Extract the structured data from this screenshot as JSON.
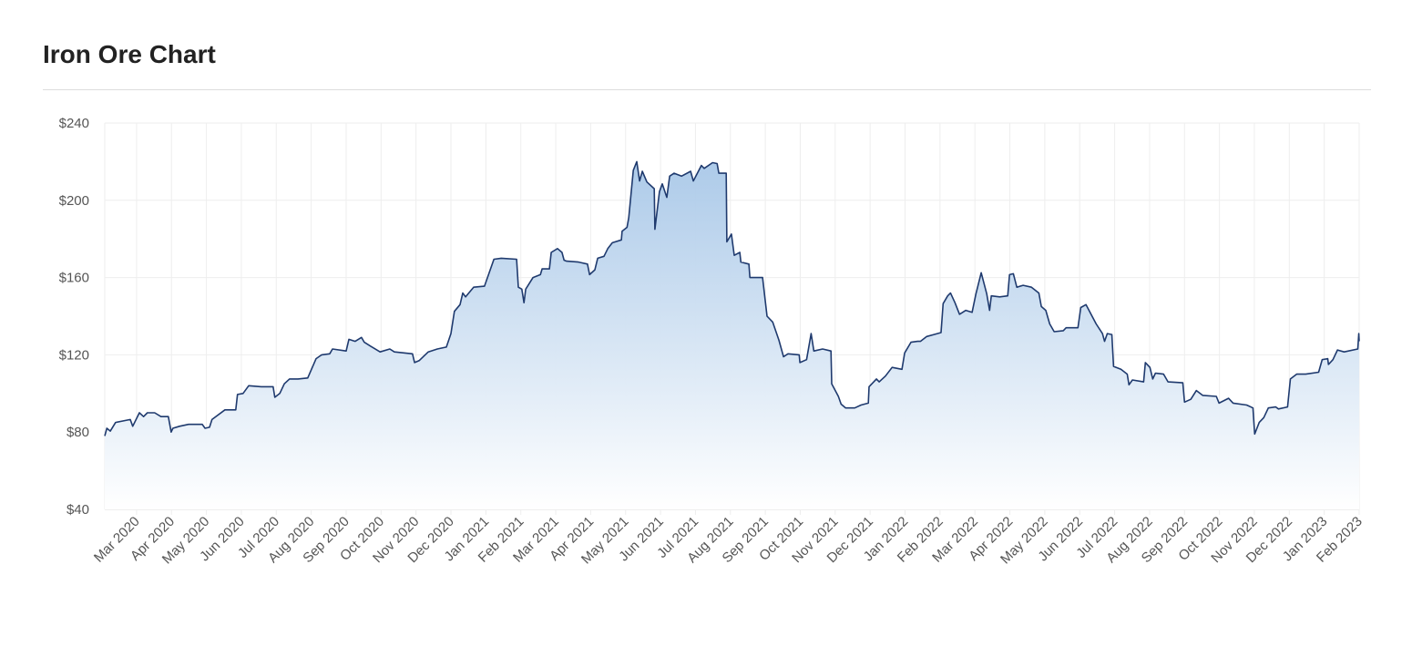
{
  "chart_data": {
    "type": "area",
    "title": "Iron Ore Chart",
    "xlabel": "",
    "ylabel": "",
    "x_units": "months since Feb 1 2020",
    "xlim": [
      0.09,
      36.0
    ],
    "ylim": [
      40,
      240
    ],
    "y_ticks": [
      40,
      80,
      120,
      160,
      200,
      240
    ],
    "y_tick_labels": [
      "$40",
      "$80",
      "$120",
      "$160",
      "$200",
      "$240"
    ],
    "x_ticks": [
      1,
      2,
      3,
      4,
      5,
      6,
      7,
      8,
      9,
      10,
      11,
      12,
      13,
      14,
      15,
      16,
      17,
      18,
      19,
      20,
      21,
      22,
      23,
      24,
      25,
      26,
      27,
      28,
      29,
      30,
      31,
      32,
      33,
      34,
      35,
      36
    ],
    "x_tick_labels": [
      "Mar 2020",
      "Apr 2020",
      "May 2020",
      "Jun 2020",
      "Jul 2020",
      "Aug 2020",
      "Sep 2020",
      "Oct 2020",
      "Nov 2020",
      "Dec 2020",
      "Jan 2021",
      "Feb 2021",
      "Mar 2021",
      "Apr 2021",
      "May 2021",
      "Jun 2021",
      "Jul 2021",
      "Aug 2021",
      "Sep 2021",
      "Oct 2021",
      "Nov 2021",
      "Dec 2021",
      "Jan 2022",
      "Feb 2022",
      "Mar 2022",
      "Apr 2022",
      "May 2022",
      "Jun 2022",
      "Jul 2022",
      "Aug 2022",
      "Sep 2022",
      "Oct 2022",
      "Nov 2022",
      "Dec 2022",
      "Jan 2023",
      "Feb 2023"
    ],
    "grid": true,
    "legend": "none",
    "colors": {
      "line": "#1f3a6e",
      "fill_top": "#a9c8e8",
      "fill_bottom": "#ffffff",
      "grid": "#eeeeee"
    },
    "series": [
      {
        "name": "Iron Ore",
        "points": [
          [
            0.09,
            78
          ],
          [
            0.15,
            82
          ],
          [
            0.25,
            80.5
          ],
          [
            0.4,
            85
          ],
          [
            0.82,
            86.5
          ],
          [
            0.89,
            83
          ],
          [
            1.08,
            90
          ],
          [
            1.2,
            88
          ],
          [
            1.31,
            90
          ],
          [
            1.52,
            90
          ],
          [
            1.7,
            88
          ],
          [
            1.91,
            88
          ],
          [
            1.99,
            80
          ],
          [
            2.04,
            82
          ],
          [
            2.23,
            83
          ],
          [
            2.49,
            84
          ],
          [
            2.88,
            84
          ],
          [
            2.96,
            82
          ],
          [
            3.09,
            82.5
          ],
          [
            3.16,
            86.5
          ],
          [
            3.53,
            91.5
          ],
          [
            3.84,
            91.5
          ],
          [
            3.89,
            99.5
          ],
          [
            4.05,
            100
          ],
          [
            4.21,
            104
          ],
          [
            4.57,
            103.5
          ],
          [
            4.91,
            103.5
          ],
          [
            4.96,
            98
          ],
          [
            5.1,
            100
          ],
          [
            5.23,
            105
          ],
          [
            5.38,
            107.5
          ],
          [
            5.62,
            107.5
          ],
          [
            5.9,
            108
          ],
          [
            6.14,
            118
          ],
          [
            6.3,
            120
          ],
          [
            6.53,
            120.5
          ],
          [
            6.61,
            123
          ],
          [
            7.0,
            122
          ],
          [
            7.08,
            128
          ],
          [
            7.26,
            127
          ],
          [
            7.44,
            129
          ],
          [
            7.52,
            126.5
          ],
          [
            7.7,
            124.5
          ],
          [
            7.97,
            121.5
          ],
          [
            8.25,
            123
          ],
          [
            8.38,
            121.5
          ],
          [
            8.9,
            120.5
          ],
          [
            8.96,
            116
          ],
          [
            9.09,
            117
          ],
          [
            9.35,
            121.5
          ],
          [
            9.61,
            123
          ],
          [
            9.87,
            124
          ],
          [
            10.0,
            131
          ],
          [
            10.1,
            142.5
          ],
          [
            10.26,
            146
          ],
          [
            10.34,
            152
          ],
          [
            10.42,
            150
          ],
          [
            10.65,
            155
          ],
          [
            10.96,
            155.5
          ],
          [
            11.23,
            169.5
          ],
          [
            11.44,
            170
          ],
          [
            11.88,
            169.5
          ],
          [
            11.93,
            155
          ],
          [
            12.03,
            154
          ],
          [
            12.09,
            147
          ],
          [
            12.14,
            154
          ],
          [
            12.35,
            160
          ],
          [
            12.56,
            161.5
          ],
          [
            12.61,
            164.5
          ],
          [
            12.82,
            164.5
          ],
          [
            12.87,
            173
          ],
          [
            13.05,
            175
          ],
          [
            13.18,
            173
          ],
          [
            13.24,
            169
          ],
          [
            13.31,
            168.5
          ],
          [
            13.65,
            168
          ],
          [
            13.91,
            167
          ],
          [
            13.97,
            161.5
          ],
          [
            14.12,
            164
          ],
          [
            14.2,
            170
          ],
          [
            14.38,
            171
          ],
          [
            14.49,
            175
          ],
          [
            14.62,
            178
          ],
          [
            14.88,
            179.5
          ],
          [
            14.9,
            184
          ],
          [
            15.04,
            186
          ],
          [
            15.09,
            191
          ],
          [
            15.22,
            215.5
          ],
          [
            15.32,
            220
          ],
          [
            15.4,
            210
          ],
          [
            15.48,
            215
          ],
          [
            15.61,
            209.5
          ],
          [
            15.82,
            206
          ],
          [
            15.84,
            185
          ],
          [
            15.97,
            204.5
          ],
          [
            16.05,
            208.5
          ],
          [
            16.18,
            201.5
          ],
          [
            16.26,
            212.5
          ],
          [
            16.39,
            214
          ],
          [
            16.6,
            212.5
          ],
          [
            16.86,
            215
          ],
          [
            16.94,
            210
          ],
          [
            17.17,
            218
          ],
          [
            17.25,
            216.5
          ],
          [
            17.49,
            219.5
          ],
          [
            17.62,
            219
          ],
          [
            17.67,
            214
          ],
          [
            17.88,
            214
          ],
          [
            17.9,
            178.5
          ],
          [
            18.03,
            182.5
          ],
          [
            18.11,
            171.5
          ],
          [
            18.27,
            173
          ],
          [
            18.3,
            168
          ],
          [
            18.53,
            167
          ],
          [
            18.56,
            160
          ],
          [
            18.92,
            160
          ],
          [
            19.05,
            140
          ],
          [
            19.21,
            137
          ],
          [
            19.39,
            127.5
          ],
          [
            19.52,
            119
          ],
          [
            19.65,
            120.5
          ],
          [
            19.97,
            120
          ],
          [
            19.99,
            116
          ],
          [
            20.18,
            117.5
          ],
          [
            20.31,
            131
          ],
          [
            20.39,
            122
          ],
          [
            20.64,
            123
          ],
          [
            20.88,
            122
          ],
          [
            20.9,
            105
          ],
          [
            21.09,
            98.5
          ],
          [
            21.17,
            94.5
          ],
          [
            21.3,
            92.5
          ],
          [
            21.56,
            92.5
          ],
          [
            21.74,
            94
          ],
          [
            21.95,
            95
          ],
          [
            21.97,
            103.5
          ],
          [
            22.18,
            107.5
          ],
          [
            22.26,
            106
          ],
          [
            22.44,
            109
          ],
          [
            22.63,
            113.5
          ],
          [
            22.91,
            112.5
          ],
          [
            22.99,
            121
          ],
          [
            23.17,
            126.5
          ],
          [
            23.36,
            127
          ],
          [
            23.44,
            127
          ],
          [
            23.62,
            129.5
          ],
          [
            23.83,
            130.5
          ],
          [
            24.03,
            131.5
          ],
          [
            24.09,
            146.5
          ],
          [
            24.22,
            150.5
          ],
          [
            24.3,
            152
          ],
          [
            24.43,
            147
          ],
          [
            24.56,
            141
          ],
          [
            24.74,
            143
          ],
          [
            24.92,
            142
          ],
          [
            25.03,
            151.5
          ],
          [
            25.18,
            162.5
          ],
          [
            25.34,
            151.5
          ],
          [
            25.42,
            143
          ],
          [
            25.47,
            150.5
          ],
          [
            25.71,
            150
          ],
          [
            25.94,
            150.5
          ],
          [
            25.99,
            161.5
          ],
          [
            26.1,
            162
          ],
          [
            26.2,
            155
          ],
          [
            26.38,
            156
          ],
          [
            26.62,
            155
          ],
          [
            26.83,
            152
          ],
          [
            26.9,
            145
          ],
          [
            27.03,
            143
          ],
          [
            27.14,
            136
          ],
          [
            27.27,
            132
          ],
          [
            27.53,
            132.5
          ],
          [
            27.61,
            134
          ],
          [
            27.95,
            134
          ],
          [
            28.03,
            144.5
          ],
          [
            28.18,
            146
          ],
          [
            28.31,
            141.5
          ],
          [
            28.47,
            136
          ],
          [
            28.65,
            131
          ],
          [
            28.71,
            127
          ],
          [
            28.79,
            131
          ],
          [
            28.92,
            130.5
          ],
          [
            28.97,
            114
          ],
          [
            29.18,
            112.5
          ],
          [
            29.36,
            110
          ],
          [
            29.41,
            104.5
          ],
          [
            29.51,
            107
          ],
          [
            29.83,
            106
          ],
          [
            29.88,
            116
          ],
          [
            30.01,
            113.5
          ],
          [
            30.09,
            107.5
          ],
          [
            30.17,
            110.5
          ],
          [
            30.4,
            110
          ],
          [
            30.53,
            106
          ],
          [
            30.95,
            105.5
          ],
          [
            31.0,
            95.5
          ],
          [
            31.18,
            97
          ],
          [
            31.34,
            101.5
          ],
          [
            31.52,
            99
          ],
          [
            31.91,
            98.5
          ],
          [
            31.99,
            95
          ],
          [
            32.26,
            97.5
          ],
          [
            32.39,
            95
          ],
          [
            32.78,
            94
          ],
          [
            32.96,
            92.5
          ],
          [
            33.01,
            79
          ],
          [
            33.14,
            85
          ],
          [
            33.27,
            87.5
          ],
          [
            33.4,
            92.5
          ],
          [
            33.61,
            93
          ],
          [
            33.69,
            92
          ],
          [
            33.95,
            93
          ],
          [
            34.03,
            107.5
          ],
          [
            34.21,
            110
          ],
          [
            34.47,
            110
          ],
          [
            34.84,
            111
          ],
          [
            34.94,
            117.5
          ],
          [
            35.1,
            118
          ],
          [
            35.12,
            115
          ],
          [
            35.25,
            117.5
          ],
          [
            35.38,
            122.5
          ],
          [
            35.57,
            121.5
          ],
          [
            35.96,
            123
          ],
          [
            35.99,
            131
          ],
          [
            36.0,
            127
          ]
        ]
      }
    ]
  }
}
